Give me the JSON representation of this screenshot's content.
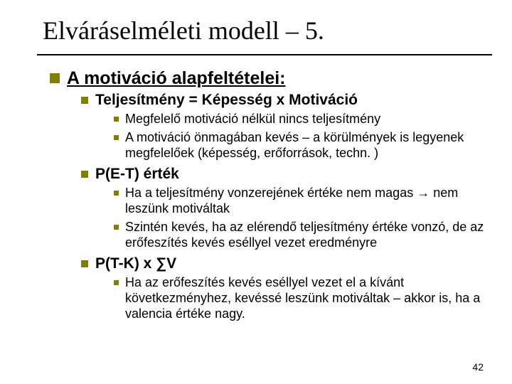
{
  "title": "Váráselméleti modell – 5.",
  "title_full": "Elváráselméleti modell – 5.",
  "heading1": "A motiváció alapfeltételei:",
  "sec1": {
    "title": "Teljesítmény = Képesség x Motiváció",
    "b1": "Megfelelő motiváció nélkül nincs teljesítmény",
    "b2": "A motiváció önmagában kevés – a körülmények is legyenek megfelelőek (képesség, erőforrások, techn. )"
  },
  "sec2": {
    "title": "P(E-T) érték",
    "b1": "Ha a teljesítmény vonzerejének értéke nem magas → nem leszünk motiváltak",
    "b2": "Szintén kevés, ha az elérendő teljesítmény értéke vonzó, de az erőfeszítés kevés eséllyel vezet eredményre"
  },
  "sec3": {
    "title": "P(T-K) x ∑V",
    "b1": "Ha az erőfeszítés kevés eséllyel vezet el a kívánt következményhez, kevéssé leszünk motiváltak – akkor is, ha a valencia értéke nagy."
  },
  "page_number": "42",
  "colors": {
    "bullet": "#808000",
    "text": "#000000",
    "background": "#ffffff"
  },
  "fontsizes": {
    "title": 36,
    "l1": 25,
    "l2": 21,
    "l3": 18
  }
}
